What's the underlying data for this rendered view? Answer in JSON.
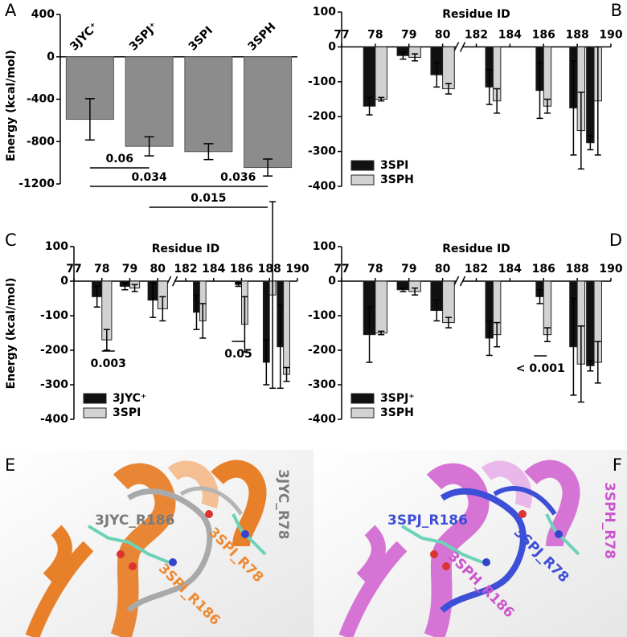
{
  "chart_data": [
    {
      "type": "bar",
      "panel_label": "A",
      "ylabel": "Energy (kcal/mol)",
      "categories": [
        "3JYC⁺",
        "3SPJ⁺",
        "3SPI",
        "3SPH"
      ],
      "values": [
        -590,
        -845,
        -895,
        -1045
      ],
      "errors": [
        195,
        90,
        75,
        80
      ],
      "color": "#8c8c8c",
      "ylim": [
        -1200,
        400
      ],
      "yticks": [
        400,
        0,
        -400,
        -800,
        -1200
      ],
      "annotations": [
        "0.06",
        "0.034",
        "0.036",
        "0.015"
      ]
    },
    {
      "type": "grouped_bar",
      "panel_label": "B",
      "xlabel": "Residue ID",
      "x": [
        78,
        79,
        80,
        183,
        186,
        188,
        189
      ],
      "xlim": [
        77,
        190
      ],
      "x_break": [
        80.5,
        181
      ],
      "xticks": [
        77,
        78,
        79,
        80,
        182,
        184,
        186,
        188,
        190
      ],
      "ylim": [
        -400,
        100
      ],
      "yticks": [
        100,
        0,
        -100,
        -200,
        -300,
        -400
      ],
      "legend": "lower left",
      "series": [
        {
          "name": "3SPI",
          "color": "#111111",
          "values": [
            -170,
            -25,
            -80,
            -115,
            -125,
            -175,
            -275
          ],
          "errors": [
            25,
            10,
            35,
            50,
            80,
            135,
            20
          ]
        },
        {
          "name": "3SPH",
          "color": "#d2d2d2",
          "values": [
            -150,
            -30,
            -120,
            -155,
            -170,
            -240,
            -155
          ],
          "errors": [
            5,
            10,
            15,
            35,
            20,
            110,
            155
          ]
        }
      ]
    },
    {
      "type": "grouped_bar",
      "panel_label": "C",
      "xlabel": "Residue ID",
      "ylabel": "Energy (kcal/mol)",
      "x": [
        78,
        79,
        80,
        183,
        186,
        188,
        189
      ],
      "xlim": [
        77,
        190
      ],
      "x_break": [
        80.5,
        181
      ],
      "xticks": [
        77,
        78,
        79,
        80,
        182,
        184,
        186,
        188,
        190
      ],
      "ylim": [
        -400,
        100
      ],
      "yticks": [
        100,
        0,
        -100,
        -200,
        -300,
        -400
      ],
      "legend": "lower left",
      "series": [
        {
          "name": "3JYC⁺",
          "color": "#111111",
          "values": [
            -45,
            -15,
            -55,
            -90,
            -10,
            -235,
            -190
          ],
          "errors": [
            30,
            10,
            50,
            50,
            5,
            65,
            120
          ]
        },
        {
          "name": "3SPI",
          "color": "#d2d2d2",
          "values": [
            -170,
            -20,
            -80,
            -115,
            -125,
            -40,
            -270
          ],
          "errors": [
            30,
            10,
            35,
            50,
            80,
            270,
            20
          ]
        }
      ],
      "annotations": [
        "0.003",
        "0.05"
      ]
    },
    {
      "type": "grouped_bar",
      "panel_label": "D",
      "xlabel": "Residue ID",
      "x": [
        78,
        79,
        80,
        183,
        186,
        188,
        189
      ],
      "xlim": [
        77,
        190
      ],
      "x_break": [
        80.5,
        181
      ],
      "xticks": [
        77,
        78,
        79,
        80,
        182,
        184,
        186,
        188,
        190
      ],
      "ylim": [
        -400,
        100
      ],
      "yticks": [
        100,
        0,
        -100,
        -200,
        -300,
        -400
      ],
      "legend": "lower left",
      "series": [
        {
          "name": "3SPJ⁺",
          "color": "#111111",
          "values": [
            -155,
            -25,
            -85,
            -165,
            -45,
            -190,
            -245
          ],
          "errors": [
            80,
            5,
            30,
            50,
            20,
            140,
            15
          ]
        },
        {
          "name": "3SPH",
          "color": "#d2d2d2",
          "values": [
            -150,
            -30,
            -120,
            -155,
            -155,
            -240,
            -235
          ],
          "errors": [
            5,
            10,
            15,
            35,
            20,
            110,
            60
          ]
        }
      ],
      "annotations": [
        "< 0.001"
      ]
    }
  ],
  "images": [
    {
      "panel_label": "E",
      "labels": [
        {
          "text": "3JYC_R186",
          "color": "#7b7b7b"
        },
        {
          "text": "3JYC_R78",
          "color": "#7b7b7b"
        },
        {
          "text": "3SPI_R186",
          "color": "#ee8a33"
        },
        {
          "text": "3SPI_R78",
          "color": "#ee8a33"
        }
      ]
    },
    {
      "panel_label": "F",
      "labels": [
        {
          "text": "3SPJ_R186",
          "color": "#3d4fd6"
        },
        {
          "text": "3SPH_R78",
          "color": "#cc55cc"
        },
        {
          "text": "3SPH_R186",
          "color": "#cc55cc"
        },
        {
          "text": "3SPJ_R78",
          "color": "#3d4fd6"
        }
      ]
    }
  ]
}
